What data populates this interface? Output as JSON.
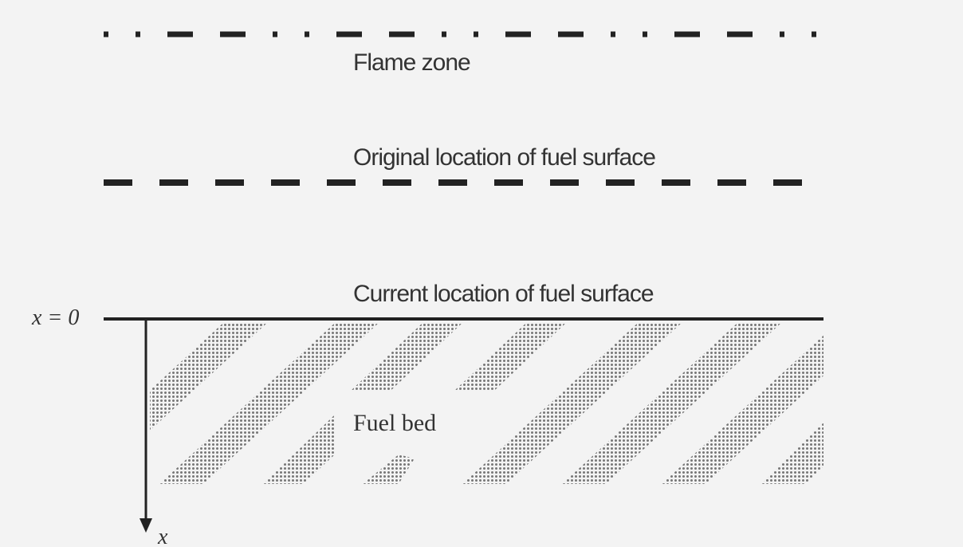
{
  "labels": {
    "flame_zone": "Flame zone",
    "original_surface": "Original location of fuel surface",
    "current_surface": "Current location of fuel surface",
    "origin": "x = 0",
    "fuel_bed": "Fuel bed",
    "axis": "x"
  }
}
